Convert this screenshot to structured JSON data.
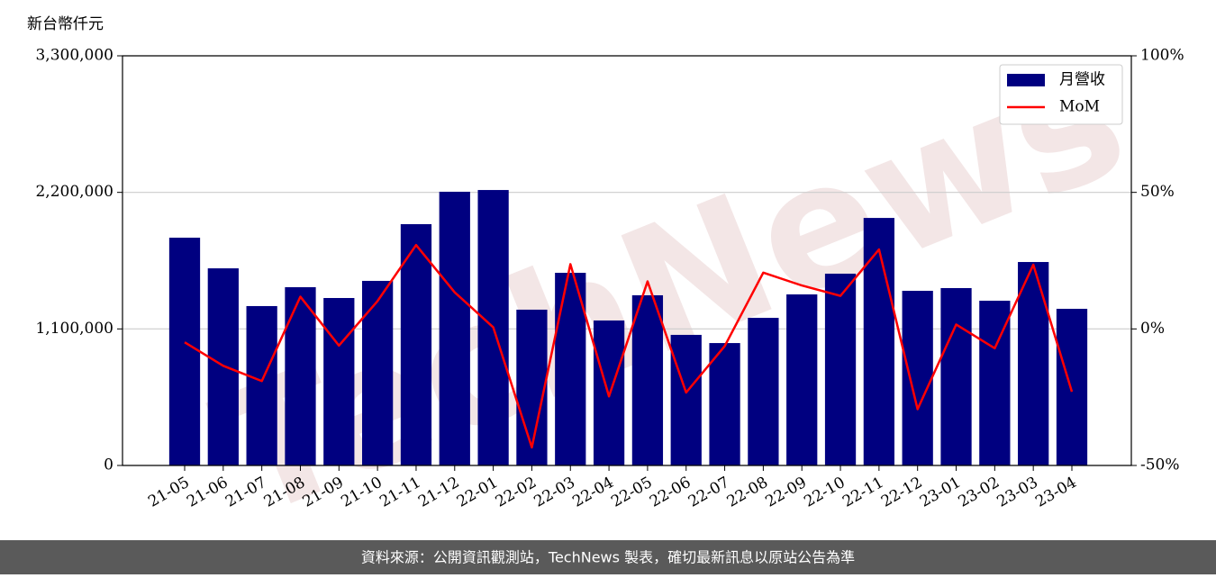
{
  "chart_data": {
    "type": "bar_line",
    "y_label": "新台幣仟元",
    "watermark": "TechNews",
    "source": "資料來源：公開資訊觀測站，TechNews 製表，確切最新訊息以原站公告為準",
    "categories": [
      "21-05",
      "21-06",
      "21-07",
      "21-08",
      "21-09",
      "21-10",
      "21-11",
      "21-12",
      "22-01",
      "22-02",
      "22-03",
      "22-04",
      "22-05",
      "22-06",
      "22-07",
      "22-08",
      "22-09",
      "22-10",
      "22-11",
      "22-12",
      "23-01",
      "23-02",
      "23-03",
      "23-04"
    ],
    "series": [
      {
        "name": "月營收",
        "type": "bar",
        "color": "#000080",
        "values": [
          1835000,
          1588000,
          1284000,
          1436000,
          1349000,
          1487000,
          1944000,
          2205000,
          2219000,
          1255000,
          1552000,
          1168000,
          1371000,
          1052000,
          986000,
          1189000,
          1378000,
          1545000,
          1994000,
          1407000,
          1429000,
          1327000,
          1639000,
          1262000
        ]
      },
      {
        "name": "MoM",
        "type": "line",
        "color": "#ff0000",
        "axis": "y2",
        "values": [
          -4.9,
          -13.5,
          -19.1,
          11.8,
          -6.1,
          10.2,
          30.7,
          13.4,
          0.6,
          -43.4,
          23.7,
          -24.7,
          17.4,
          -23.3,
          -6.3,
          20.6,
          15.9,
          12.1,
          29.1,
          -29.4,
          1.6,
          -7.1,
          23.5,
          -23
        ]
      }
    ],
    "ylim": [
      0,
      3300000
    ],
    "yticks": [
      0,
      {
        "value": 1100000,
        "label": "1,100,000"
      },
      {
        "value": 2200000,
        "label": "2,200,000"
      },
      {
        "value": 3300000,
        "label": "3,300,000"
      }
    ],
    "y2lim": [
      -50,
      100
    ],
    "y2ticks": [
      {
        "value": -50,
        "label": "-50%"
      },
      {
        "value": 0,
        "label": "0%"
      },
      {
        "value": 50,
        "label": "50%"
      },
      {
        "value": 100,
        "label": "100%"
      }
    ],
    "grid": true,
    "legend": "upper right"
  }
}
